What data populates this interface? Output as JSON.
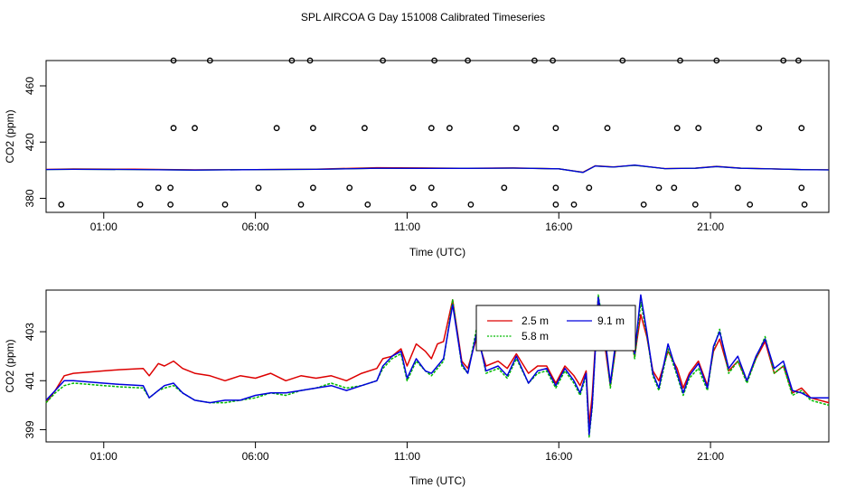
{
  "title": "SPL AIRCOA G  Day 151008  Calibrated Timeseries",
  "chart_data": [
    {
      "type": "scatter+line",
      "panel": "top",
      "xlabel": "Time (UTC)",
      "ylabel": "CO2 (ppm)",
      "xlim": [
        -0.9,
        24.9
      ],
      "ylim": [
        370,
        478
      ],
      "xticks": [
        1,
        6,
        11,
        16,
        21
      ],
      "xtick_labels": [
        "01:00",
        "06:00",
        "11:00",
        "16:00",
        "21:00"
      ],
      "yticks": [
        380,
        420,
        460
      ],
      "ytick_labels": [
        "380",
        "420",
        "460"
      ],
      "calibration_points": {
        "rows": [
          {
            "y": 375.5,
            "x": [
              -0.4,
              2.2,
              3.2,
              5.0,
              7.5,
              9.7,
              11.9,
              13.1,
              15.9,
              16.5,
              18.8,
              20.5,
              22.3,
              24.1
            ]
          },
          {
            "y": 387.5,
            "x": [
              2.8,
              3.2,
              6.1,
              7.9,
              9.1,
              11.2,
              11.8,
              14.2,
              15.9,
              17.0,
              19.3,
              19.8,
              21.9,
              24.0
            ]
          },
          {
            "y": 430,
            "x": [
              3.3,
              4.0,
              6.7,
              7.9,
              9.6,
              11.8,
              12.4,
              14.6,
              15.9,
              17.6,
              19.9,
              20.6,
              22.6,
              24.0
            ]
          },
          {
            "y": 478,
            "x": [
              3.3,
              4.5,
              7.2,
              7.8,
              10.2,
              11.9,
              13.0,
              15.2,
              15.8,
              18.1,
              20.0,
              21.2,
              23.4,
              23.9
            ]
          }
        ]
      },
      "series": [
        {
          "name": "2.5 m",
          "color": "#dd0000",
          "x": [
            -0.9,
            0,
            2,
            4,
            6,
            8,
            10,
            11.5,
            13,
            14.5,
            16,
            16.8,
            17.2,
            17.8,
            18.5,
            19.5,
            20.5,
            21.2,
            22,
            23,
            24,
            24.9
          ],
          "values": [
            400.6,
            400.9,
            400.7,
            400.3,
            400.4,
            400.8,
            401.8,
            401.6,
            401.4,
            401.6,
            401.0,
            398.6,
            403.2,
            402.4,
            403.5,
            401.2,
            401.5,
            402.8,
            401.5,
            401.0,
            400.5,
            400.3
          ]
        },
        {
          "name": "5.8 m",
          "color": "#00bb00",
          "x": [
            -0.9,
            0,
            2,
            4,
            6,
            8,
            10,
            11.5,
            13,
            14.5,
            16,
            16.8,
            17.2,
            17.8,
            18.5,
            19.5,
            20.5,
            21.2,
            22,
            23,
            24,
            24.9
          ],
          "values": [
            400.5,
            400.6,
            400.5,
            400.1,
            400.4,
            400.6,
            401.4,
            401.3,
            401.3,
            401.5,
            401.0,
            398.4,
            403.0,
            402.2,
            403.4,
            401.1,
            401.4,
            402.6,
            401.4,
            400.9,
            400.4,
            400.2
          ]
        },
        {
          "name": "9.1 m",
          "color": "#0000dd",
          "x": [
            -0.9,
            0,
            2,
            4,
            6,
            8,
            10,
            11.5,
            13,
            14.5,
            16,
            16.8,
            17.2,
            17.8,
            18.5,
            19.5,
            20.5,
            21.2,
            22,
            23,
            24,
            24.9
          ],
          "values": [
            400.5,
            400.6,
            400.5,
            400.1,
            400.4,
            400.6,
            401.4,
            401.3,
            401.3,
            401.5,
            401.0,
            398.4,
            403.0,
            402.2,
            403.6,
            401.1,
            401.4,
            402.6,
            401.4,
            400.9,
            400.4,
            400.2
          ]
        }
      ]
    },
    {
      "type": "line",
      "panel": "bottom",
      "xlabel": "Time (UTC)",
      "ylabel": "CO2 (ppm)",
      "xlim": [
        -0.9,
        24.9
      ],
      "ylim": [
        398.5,
        404.7
      ],
      "xticks": [
        1,
        6,
        11,
        16,
        21
      ],
      "xtick_labels": [
        "01:00",
        "06:00",
        "11:00",
        "16:00",
        "21:00"
      ],
      "yticks": [
        399,
        401,
        403
      ],
      "ytick_labels": [
        "399",
        "401",
        "403"
      ],
      "legend": {
        "position": "top-center",
        "entries": [
          "2.5 m",
          "5.8 m",
          "9.1 m"
        ]
      },
      "series": [
        {
          "name": "2.5 m",
          "color": "#dd0000",
          "x": [
            -0.9,
            -0.6,
            -0.3,
            0,
            0.5,
            1,
            1.5,
            2.3,
            2.5,
            2.8,
            3.0,
            3.3,
            3.6,
            4.0,
            4.5,
            5.0,
            5.5,
            6.0,
            6.5,
            7.0,
            7.5,
            8.0,
            8.5,
            9.0,
            9.5,
            10.0,
            10.2,
            10.5,
            10.8,
            11.0,
            11.3,
            11.6,
            11.8,
            12.0,
            12.2,
            12.5,
            12.8,
            13.0,
            13.3,
            13.6,
            14.0,
            14.3,
            14.6,
            15.0,
            15.3,
            15.6,
            15.9,
            16.2,
            16.5,
            16.7,
            16.9,
            17.0,
            17.1,
            17.3,
            17.5,
            17.7,
            17.9,
            18.1,
            18.3,
            18.5,
            18.7,
            18.9,
            19.1,
            19.3,
            19.6,
            19.9,
            20.1,
            20.3,
            20.6,
            20.9,
            21.1,
            21.3,
            21.6,
            21.9,
            22.2,
            22.5,
            22.8,
            23.1,
            23.4,
            23.7,
            24.0,
            24.3,
            24.9
          ],
          "values": [
            400.1,
            400.6,
            401.2,
            401.3,
            401.35,
            401.4,
            401.45,
            401.5,
            401.2,
            401.7,
            401.6,
            401.8,
            401.5,
            401.3,
            401.2,
            401.0,
            401.2,
            401.1,
            401.3,
            401.0,
            401.2,
            401.1,
            401.2,
            401.0,
            401.3,
            401.5,
            401.9,
            402.0,
            402.3,
            401.6,
            402.5,
            402.2,
            401.9,
            402.5,
            402.6,
            404.3,
            401.8,
            401.5,
            402.8,
            401.6,
            401.8,
            401.5,
            402.1,
            401.3,
            401.6,
            401.6,
            400.9,
            401.6,
            401.2,
            400.8,
            401.4,
            399.2,
            400.4,
            404.4,
            402.6,
            400.8,
            402.5,
            402.4,
            403.1,
            402.0,
            403.7,
            402.8,
            401.4,
            401.0,
            402.2,
            401.5,
            400.7,
            401.3,
            401.8,
            400.8,
            402.2,
            402.7,
            401.4,
            401.8,
            401.0,
            401.9,
            402.6,
            401.3,
            401.6,
            400.5,
            400.7,
            400.3,
            400.1
          ]
        },
        {
          "name": "5.8 m",
          "color": "#00bb00",
          "x": [
            -0.9,
            -0.6,
            -0.3,
            0,
            0.5,
            1,
            1.5,
            2.3,
            2.5,
            2.8,
            3.0,
            3.3,
            3.6,
            4.0,
            4.5,
            5.0,
            5.5,
            6.0,
            6.5,
            7.0,
            7.5,
            8.0,
            8.5,
            9.0,
            9.5,
            10.0,
            10.2,
            10.5,
            10.8,
            11.0,
            11.3,
            11.6,
            11.8,
            12.0,
            12.2,
            12.5,
            12.8,
            13.0,
            13.3,
            13.6,
            14.0,
            14.3,
            14.6,
            15.0,
            15.3,
            15.6,
            15.9,
            16.2,
            16.5,
            16.7,
            16.9,
            17.0,
            17.1,
            17.3,
            17.5,
            17.7,
            17.9,
            18.1,
            18.3,
            18.5,
            18.7,
            18.9,
            19.1,
            19.3,
            19.6,
            19.9,
            20.1,
            20.3,
            20.6,
            20.9,
            21.1,
            21.3,
            21.6,
            21.9,
            22.2,
            22.5,
            22.8,
            23.1,
            23.4,
            23.7,
            24.0,
            24.3,
            24.9
          ],
          "values": [
            400.1,
            400.5,
            400.8,
            400.9,
            400.85,
            400.8,
            400.75,
            400.7,
            400.3,
            400.6,
            400.7,
            400.8,
            400.5,
            400.2,
            400.1,
            400.1,
            400.2,
            400.3,
            400.5,
            400.4,
            400.6,
            400.7,
            400.9,
            400.7,
            400.8,
            401.0,
            401.5,
            401.9,
            402.1,
            401.0,
            401.8,
            401.4,
            401.2,
            401.5,
            401.8,
            404.3,
            401.6,
            401.3,
            403.2,
            401.3,
            401.5,
            401.1,
            401.9,
            400.9,
            401.3,
            401.4,
            400.7,
            401.4,
            400.9,
            400.4,
            401.2,
            398.7,
            399.9,
            404.5,
            403.0,
            400.7,
            402.6,
            402.9,
            403.4,
            401.9,
            404.2,
            402.9,
            401.2,
            400.6,
            402.3,
            401.2,
            400.4,
            401.1,
            401.5,
            400.6,
            402.3,
            403.1,
            401.3,
            401.8,
            400.9,
            401.9,
            402.8,
            401.3,
            401.6,
            400.4,
            400.6,
            400.2,
            400.0
          ]
        },
        {
          "name": "9.1 m",
          "color": "#0000dd",
          "x": [
            -0.9,
            -0.6,
            -0.3,
            0,
            0.5,
            1,
            1.5,
            2.3,
            2.5,
            2.8,
            3.0,
            3.3,
            3.6,
            4.0,
            4.5,
            5.0,
            5.5,
            6.0,
            6.5,
            7.0,
            7.5,
            8.0,
            8.5,
            9.0,
            9.5,
            10.0,
            10.2,
            10.5,
            10.8,
            11.0,
            11.3,
            11.6,
            11.8,
            12.0,
            12.2,
            12.5,
            12.8,
            13.0,
            13.3,
            13.6,
            14.0,
            14.3,
            14.6,
            15.0,
            15.3,
            15.6,
            15.9,
            16.2,
            16.5,
            16.7,
            16.9,
            17.0,
            17.1,
            17.3,
            17.5,
            17.7,
            17.9,
            18.1,
            18.3,
            18.5,
            18.7,
            18.9,
            19.1,
            19.3,
            19.6,
            19.9,
            20.1,
            20.3,
            20.6,
            20.9,
            21.1,
            21.3,
            21.6,
            21.9,
            22.2,
            22.5,
            22.8,
            23.1,
            23.4,
            23.7,
            24.0,
            24.3,
            24.9
          ],
          "values": [
            400.2,
            400.6,
            401.0,
            401.0,
            400.95,
            400.9,
            400.85,
            400.8,
            400.3,
            400.6,
            400.8,
            400.9,
            400.5,
            400.2,
            400.1,
            400.2,
            400.2,
            400.4,
            400.5,
            400.5,
            400.6,
            400.7,
            400.8,
            400.6,
            400.8,
            401.0,
            401.6,
            402.0,
            402.2,
            401.1,
            401.9,
            401.4,
            401.3,
            401.6,
            401.9,
            404.1,
            401.7,
            401.3,
            403.0,
            401.4,
            401.6,
            401.2,
            402.0,
            400.9,
            401.4,
            401.5,
            400.8,
            401.5,
            401.0,
            400.5,
            401.3,
            398.8,
            400.0,
            404.4,
            403.0,
            400.9,
            402.8,
            402.9,
            403.5,
            402.1,
            404.5,
            403.0,
            401.3,
            400.7,
            402.5,
            401.3,
            400.5,
            401.2,
            401.7,
            400.7,
            402.4,
            403.0,
            401.5,
            402.0,
            401.0,
            402.0,
            402.7,
            401.5,
            401.8,
            400.6,
            400.5,
            400.3,
            400.3
          ]
        }
      ]
    }
  ]
}
